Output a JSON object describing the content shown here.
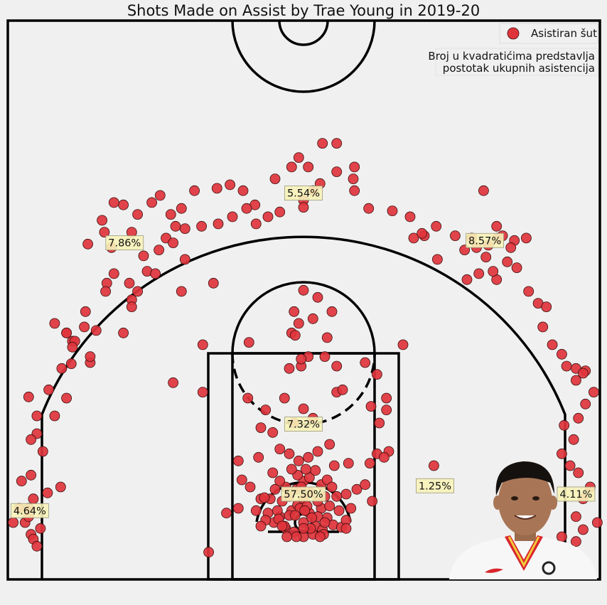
{
  "chart_data": {
    "type": "scatter",
    "title": "Shots Made on Assist by Trae Young in 2019-20",
    "legend": {
      "label": "Asistiran šut",
      "placement": "top-right"
    },
    "note": [
      "Broj u kvadratićima predstavlja",
      "postotak ukupnih asistencija"
    ],
    "colors": {
      "marker": "#e0343c",
      "marker_edge": "#3a1010",
      "label_box": "#f7f2b8"
    },
    "grid": false,
    "xlim": [
      -250,
      250
    ],
    "ylim": [
      -47.5,
      422.5
    ],
    "zones": [
      {
        "label": "57.50%",
        "x": 0,
        "y": 24
      },
      {
        "label": "7.32%",
        "x": 0,
        "y": 83
      },
      {
        "label": "4.64%",
        "x": -231,
        "y": 10
      },
      {
        "label": "4.11%",
        "x": 230,
        "y": 24
      },
      {
        "label": "1.25%",
        "x": 111,
        "y": 31
      },
      {
        "label": "7.86%",
        "x": -151,
        "y": 236
      },
      {
        "label": "8.57%",
        "x": 153,
        "y": 238
      },
      {
        "label": "5.54%",
        "x": 0,
        "y": 278
      }
    ],
    "points": [
      [
        -25,
        0
      ],
      [
        -20,
        5
      ],
      [
        -15,
        -5
      ],
      [
        -10,
        10
      ],
      [
        -5,
        15
      ],
      [
        0,
        0
      ],
      [
        5,
        8
      ],
      [
        10,
        -3
      ],
      [
        15,
        12
      ],
      [
        20,
        4
      ],
      [
        25,
        -2
      ],
      [
        -18,
        18
      ],
      [
        -12,
        22
      ],
      [
        -6,
        28
      ],
      [
        0,
        20
      ],
      [
        6,
        25
      ],
      [
        12,
        18
      ],
      [
        18,
        22
      ],
      [
        22,
        14
      ],
      [
        -22,
        10
      ],
      [
        -8,
        -8
      ],
      [
        8,
        -10
      ],
      [
        -30,
        8
      ],
      [
        30,
        10
      ],
      [
        -28,
        20
      ],
      [
        28,
        22
      ],
      [
        -15,
        30
      ],
      [
        15,
        32
      ],
      [
        0,
        35
      ],
      [
        -5,
        40
      ],
      [
        5,
        38
      ],
      [
        -10,
        45
      ],
      [
        10,
        44
      ],
      [
        -20,
        35
      ],
      [
        20,
        36
      ],
      [
        -3,
        12
      ],
      [
        3,
        14
      ],
      [
        -12,
        6
      ],
      [
        12,
        5
      ],
      [
        0,
        -12
      ],
      [
        -6,
        -12
      ],
      [
        6,
        -5
      ],
      [
        -16,
        -3
      ],
      [
        16,
        -6
      ],
      [
        -32,
        2
      ],
      [
        32,
        -4
      ],
      [
        -2,
        30
      ],
      [
        2,
        45
      ],
      [
        -24,
        28
      ],
      [
        24,
        30
      ],
      [
        -26,
        42
      ],
      [
        26,
        48
      ],
      [
        -36,
        20
      ],
      [
        36,
        24
      ],
      [
        -4,
        52
      ],
      [
        4,
        55
      ],
      [
        -12,
        58
      ],
      [
        12,
        60
      ],
      [
        -40,
        10
      ],
      [
        40,
        12
      ],
      [
        -45,
        30
      ],
      [
        45,
        28
      ],
      [
        -38,
        55
      ],
      [
        38,
        50
      ],
      [
        -20,
        62
      ],
      [
        22,
        66
      ],
      [
        -52,
        36
      ],
      [
        52,
        32
      ],
      [
        -55,
        12
      ],
      [
        58,
        18
      ],
      [
        -65,
        8
      ],
      [
        62,
        58
      ],
      [
        -85,
        110
      ],
      [
        -47,
        105
      ],
      [
        -32,
        95
      ],
      [
        -16,
        105
      ],
      [
        -36,
        80
      ],
      [
        -26,
        76
      ],
      [
        -8,
        84
      ],
      [
        0,
        96
      ],
      [
        8,
        88
      ],
      [
        28,
        110
      ],
      [
        33,
        112
      ],
      [
        -12,
        130
      ],
      [
        -2,
        132
      ],
      [
        4,
        140
      ],
      [
        18,
        140
      ],
      [
        28,
        132
      ],
      [
        20,
        156
      ],
      [
        -46,
        152
      ],
      [
        -85,
        150
      ],
      [
        -10,
        160
      ],
      [
        -4,
        168
      ],
      [
        8,
        172
      ],
      [
        -8,
        178
      ],
      [
        24,
        178
      ],
      [
        12,
        190
      ],
      [
        0,
        196
      ],
      [
        -110,
        118
      ],
      [
        -55,
        52
      ],
      [
        56,
        50
      ],
      [
        72,
        60
      ],
      [
        62,
        125
      ],
      [
        70,
        105
      ],
      [
        84,
        150
      ],
      [
        70,
        95
      ],
      [
        68,
        55
      ],
      [
        57,
        98
      ],
      [
        -7,
        158
      ],
      [
        -2,
        138
      ],
      [
        52,
        135
      ],
      [
        64,
        84
      ],
      [
        110,
        48
      ],
      [
        136,
        230
      ],
      [
        163,
        205
      ],
      [
        152,
        280
      ],
      [
        -76,
        202
      ],
      [
        -100,
        222
      ],
      [
        -103,
        265
      ],
      [
        -116,
        240
      ],
      [
        -103,
        195
      ],
      [
        -122,
        230
      ],
      [
        -135,
        225
      ],
      [
        -132,
        212
      ],
      [
        -145,
        188
      ],
      [
        -152,
        160
      ],
      [
        -152,
        268
      ],
      [
        -140,
        260
      ],
      [
        -128,
        270
      ],
      [
        -121,
        276
      ],
      [
        -112,
        260
      ],
      [
        -92,
        280
      ],
      [
        -73,
        282
      ],
      [
        -62,
        285
      ],
      [
        -51,
        280
      ],
      [
        -41,
        268
      ],
      [
        -10,
        300
      ],
      [
        -4,
        308
      ],
      [
        4,
        300
      ],
      [
        16,
        320
      ],
      [
        28,
        320
      ],
      [
        43,
        300
      ],
      [
        -200,
        160
      ],
      [
        -195,
        153
      ],
      [
        -180,
        135
      ],
      [
        -166,
        202
      ],
      [
        -147,
        202
      ],
      [
        -160,
        270
      ],
      [
        -145,
        245
      ],
      [
        -185,
        165
      ],
      [
        -196,
        134
      ],
      [
        -193,
        153
      ],
      [
        -200,
        160
      ],
      [
        -210,
        90
      ],
      [
        -225,
        75
      ],
      [
        -232,
        106
      ],
      [
        -230,
        40
      ],
      [
        -238,
        35
      ],
      [
        -228,
        20
      ],
      [
        -240,
        12
      ],
      [
        -235,
        0
      ],
      [
        -232,
        5
      ],
      [
        -245,
        0
      ],
      [
        -230,
        -10
      ],
      [
        -222,
        -5
      ],
      [
        -228,
        -14
      ],
      [
        -225,
        -20
      ],
      [
        -216,
        25
      ],
      [
        -205,
        30
      ],
      [
        -220,
        60
      ],
      [
        -200,
        105
      ],
      [
        -125,
        210
      ],
      [
        -140,
        195
      ],
      [
        -180,
        140
      ],
      [
        -160,
        210
      ],
      [
        -167,
        195
      ],
      [
        -175,
        162
      ],
      [
        -184,
        178
      ],
      [
        -204,
        130
      ],
      [
        -195,
        148
      ],
      [
        -145,
        182
      ],
      [
        -210,
        168
      ],
      [
        -232,
        12
      ],
      [
        -230,
        70
      ],
      [
        -215,
        112
      ],
      [
        -225,
        90
      ],
      [
        -182,
        235
      ],
      [
        -170,
        255
      ],
      [
        -168,
        245
      ],
      [
        -162,
        232
      ],
      [
        -110,
        236
      ],
      [
        -108,
        250
      ],
      [
        -100,
        248
      ],
      [
        -86,
        250
      ],
      [
        -72,
        252
      ],
      [
        -60,
        258
      ],
      [
        -48,
        265
      ],
      [
        -40,
        252
      ],
      [
        -30,
        258
      ],
      [
        -20,
        262
      ],
      [
        0,
        272
      ],
      [
        8,
        280
      ],
      [
        14,
        286
      ],
      [
        28,
        296
      ],
      [
        42,
        290
      ],
      [
        -24,
        290
      ],
      [
        43,
        280
      ],
      [
        0,
        266
      ],
      [
        55,
        265
      ],
      [
        75,
        263
      ],
      [
        90,
        258
      ],
      [
        102,
        242
      ],
      [
        112,
        250
      ],
      [
        128,
        242
      ],
      [
        142,
        240
      ],
      [
        156,
        234
      ],
      [
        164,
        240
      ],
      [
        178,
        238
      ],
      [
        148,
        210
      ],
      [
        160,
        212
      ],
      [
        188,
        240
      ],
      [
        113,
        222
      ],
      [
        138,
        205
      ],
      [
        163,
        250
      ],
      [
        175,
        232
      ],
      [
        172,
        220
      ],
      [
        168,
        242
      ],
      [
        146,
        232
      ],
      [
        93,
        240
      ],
      [
        100,
        244
      ],
      [
        154,
        224
      ],
      [
        180,
        215
      ],
      [
        190,
        195
      ],
      [
        198,
        185
      ],
      [
        205,
        182
      ],
      [
        202,
        165
      ],
      [
        210,
        150
      ],
      [
        218,
        142
      ],
      [
        222,
        132
      ],
      [
        230,
        130
      ],
      [
        238,
        128
      ],
      [
        245,
        110
      ],
      [
        238,
        100
      ],
      [
        220,
        82
      ],
      [
        228,
        70
      ],
      [
        218,
        58
      ],
      [
        232,
        42
      ],
      [
        242,
        30
      ],
      [
        236,
        20
      ],
      [
        248,
        0
      ],
      [
        230,
        5
      ],
      [
        236,
        -6
      ],
      [
        230,
        -16
      ],
      [
        220,
        -30
      ],
      [
        218,
        -12
      ],
      [
        225,
        48
      ],
      [
        232,
        88
      ],
      [
        230,
        120
      ],
      [
        236,
        126
      ],
      [
        186,
        -40
      ],
      [
        -80,
        -25
      ],
      [
        17,
        -10
      ],
      [
        -21,
        3
      ],
      [
        36,
        2
      ],
      [
        -33,
        21
      ],
      [
        1,
        10
      ],
      [
        -14,
        -12
      ],
      [
        14,
        -12
      ],
      [
        -7,
        6
      ],
      [
        7,
        4
      ],
      [
        -18,
        -3
      ],
      [
        18,
        0
      ],
      [
        -36,
        -3
      ],
      [
        36,
        -5
      ],
      [
        0,
        -5
      ]
    ]
  }
}
